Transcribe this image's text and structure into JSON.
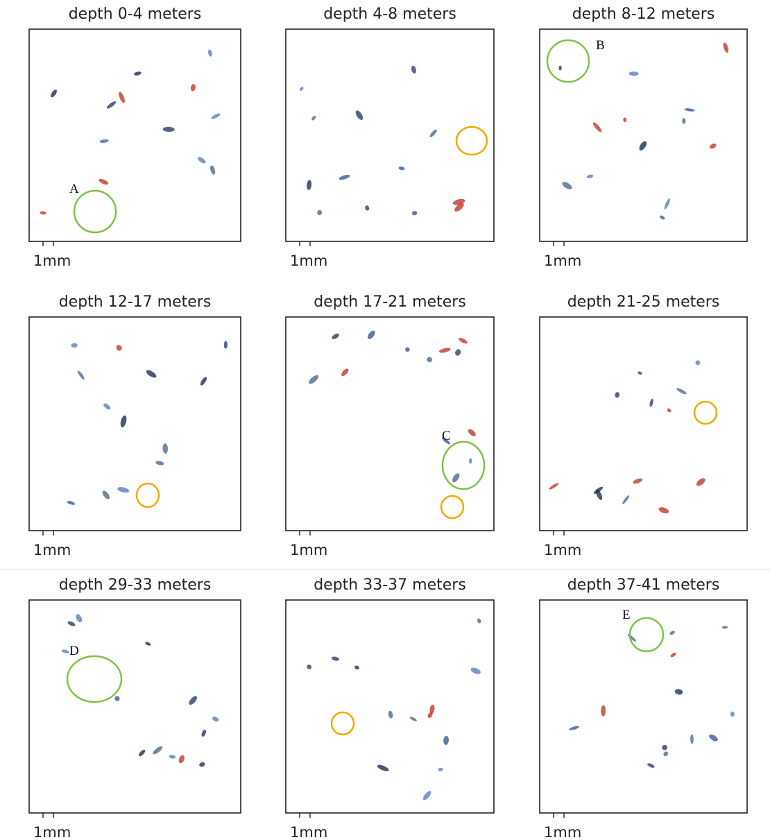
{
  "panels": [
    {
      "title": "depth 0-4 meters",
      "scale_label": "1mm",
      "annotation": "A"
    },
    {
      "title": "depth 4-8 meters",
      "scale_label": "1mm"
    },
    {
      "title": "depth 8-12 meters",
      "scale_label": "1mm",
      "annotation": "B"
    },
    {
      "title": "depth 12-17 meters",
      "scale_label": "1mm"
    },
    {
      "title": "depth 17-21 meters",
      "scale_label": "1mm",
      "annotation": "C"
    },
    {
      "title": "depth 21-25 meters",
      "scale_label": "1mm"
    },
    {
      "title": "depth 29-33 meters",
      "scale_label": "1mm",
      "annotation": "D"
    },
    {
      "title": "depth 33-37 meters",
      "scale_label": "1mm"
    },
    {
      "title": "depth 37-41 meters",
      "scale_label": "1mm",
      "annotation": "E"
    }
  ]
}
